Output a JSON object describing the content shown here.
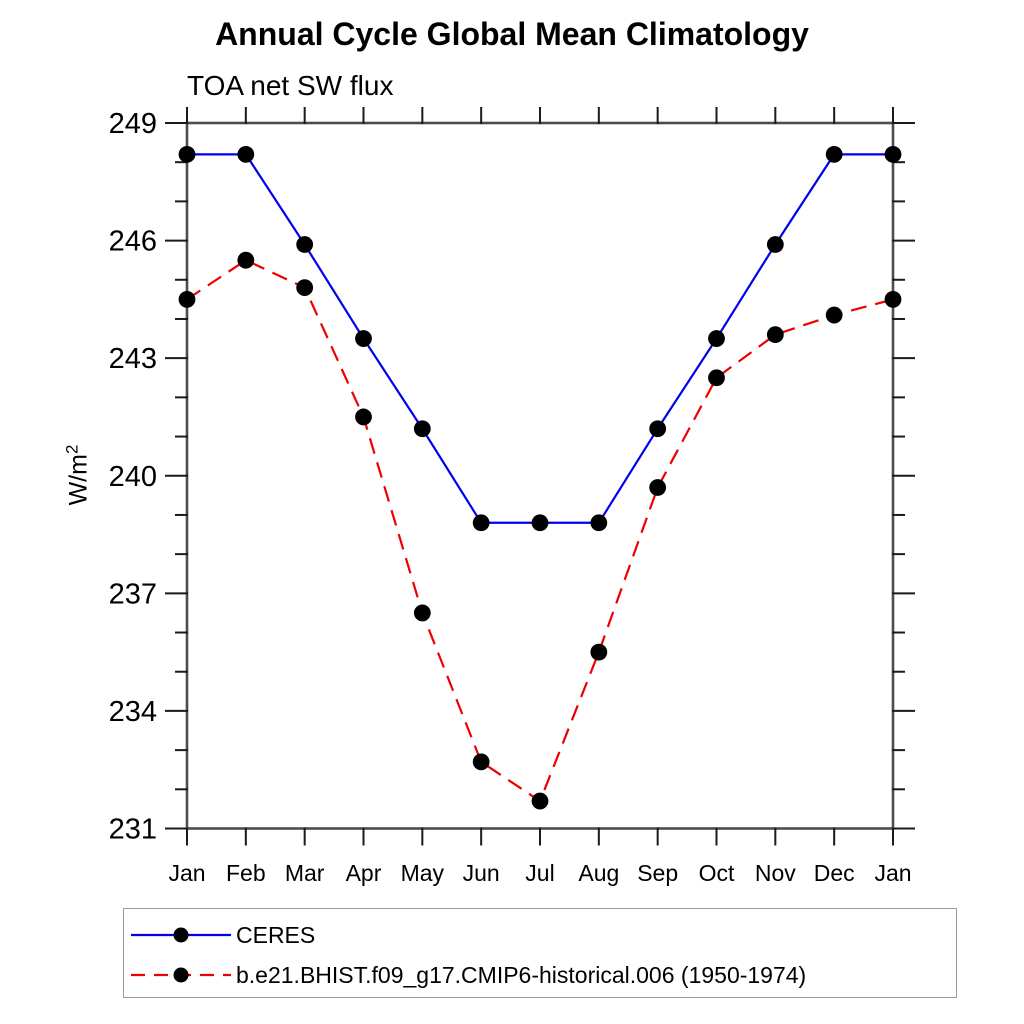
{
  "title": "Annual Cycle Global Mean Climatology",
  "subtitle": "TOA net SW flux",
  "ylabel_base": "W/m",
  "ylabel_sup": "2",
  "chart_data": {
    "type": "line",
    "title": "Annual Cycle Global Mean Climatology",
    "subtitle": "TOA net SW flux",
    "ylabel": "W/m^2",
    "xlabel": "",
    "categories": [
      "Jan",
      "Feb",
      "Mar",
      "Apr",
      "May",
      "Jun",
      "Jul",
      "Aug",
      "Sep",
      "Oct",
      "Nov",
      "Dec",
      "Jan"
    ],
    "ylim": [
      231,
      249
    ],
    "yticks_major": [
      231,
      234,
      237,
      240,
      243,
      246,
      249
    ],
    "ytick_minor_step": 1,
    "grid": false,
    "legend_position": "bottom-left-outside",
    "axis_color": "#4d4d4d",
    "tick_color": "#1a1a1a",
    "legend_border_color": "#999999",
    "series": [
      {
        "name": "CERES",
        "color": "#0000ee",
        "style": "solid",
        "marker": "circle",
        "marker_color": "#000000",
        "values": [
          248.2,
          248.2,
          245.9,
          243.5,
          241.2,
          238.8,
          238.8,
          238.8,
          241.2,
          243.5,
          245.9,
          248.2,
          248.2
        ]
      },
      {
        "name": "b.e21.BHIST.f09_g17.CMIP6-historical.006 (1950-1974)",
        "color": "#ee0000",
        "style": "dashed",
        "marker": "circle",
        "marker_color": "#000000",
        "values": [
          244.5,
          245.5,
          244.8,
          241.5,
          236.5,
          232.7,
          231.7,
          235.5,
          239.7,
          242.5,
          243.6,
          244.1,
          244.5
        ]
      }
    ]
  }
}
